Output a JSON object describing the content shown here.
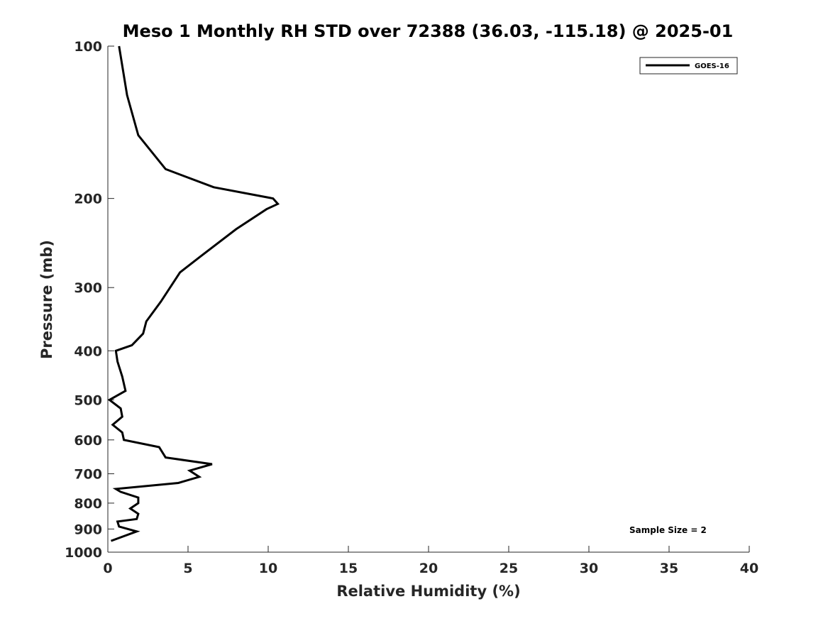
{
  "chart_data": {
    "type": "line",
    "title": "Meso 1 Monthly RH STD over 72388 (36.03, -115.18) @ 2025-01",
    "xlabel": "Relative Humidity (%)",
    "ylabel": "Pressure (mb)",
    "xlim": [
      0,
      40
    ],
    "ylim": [
      100,
      1000
    ],
    "y_scale": "log",
    "y_reversed": true,
    "x_ticks": [
      0,
      5,
      10,
      15,
      20,
      25,
      30,
      35,
      40
    ],
    "x_tick_labels": [
      "0",
      "5",
      "10",
      "15",
      "20",
      "25",
      "30",
      "35",
      "40"
    ],
    "y_ticks": [
      100,
      200,
      300,
      400,
      500,
      600,
      700,
      800,
      900,
      1000
    ],
    "y_tick_labels": [
      "100",
      "200",
      "300",
      "400",
      "500",
      "600",
      "700",
      "800",
      "900",
      "1000"
    ],
    "grid": false,
    "legend_position": "top-right",
    "annotation": "Sample Size = 2",
    "series": [
      {
        "name": "GOES-16",
        "color": "#000000",
        "points": [
          [
            0.7,
            100
          ],
          [
            1.2,
            125
          ],
          [
            1.9,
            150
          ],
          [
            3.6,
            175
          ],
          [
            6.6,
            190
          ],
          [
            10.3,
            200
          ],
          [
            10.6,
            205
          ],
          [
            9.9,
            210
          ],
          [
            8.0,
            230
          ],
          [
            5.8,
            260
          ],
          [
            4.5,
            280
          ],
          [
            3.3,
            320
          ],
          [
            2.4,
            350
          ],
          [
            2.2,
            370
          ],
          [
            1.5,
            390
          ],
          [
            0.5,
            400
          ],
          [
            0.6,
            420
          ],
          [
            0.9,
            450
          ],
          [
            1.1,
            480
          ],
          [
            0.6,
            490
          ],
          [
            0.1,
            500
          ],
          [
            0.8,
            520
          ],
          [
            0.9,
            540
          ],
          [
            0.3,
            560
          ],
          [
            0.9,
            580
          ],
          [
            1.0,
            600
          ],
          [
            3.2,
            620
          ],
          [
            3.6,
            650
          ],
          [
            6.5,
            670
          ],
          [
            5.1,
            690
          ],
          [
            5.7,
            710
          ],
          [
            4.4,
            730
          ],
          [
            0.5,
            750
          ],
          [
            0.8,
            760
          ],
          [
            1.9,
            780
          ],
          [
            1.9,
            800
          ],
          [
            1.4,
            820
          ],
          [
            1.9,
            840
          ],
          [
            1.8,
            860
          ],
          [
            0.6,
            870
          ],
          [
            0.7,
            890
          ],
          [
            1.8,
            910
          ],
          [
            0.2,
            950
          ]
        ]
      }
    ]
  }
}
